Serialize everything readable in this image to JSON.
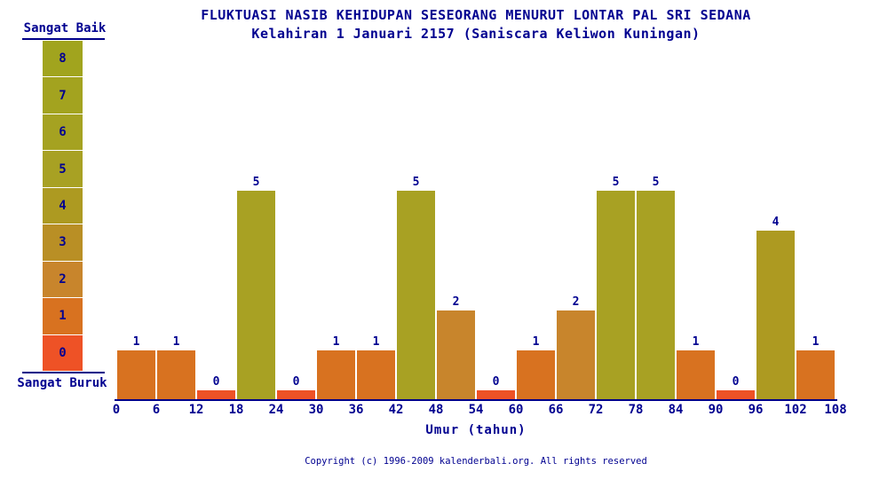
{
  "page": {
    "copyright": "Copyright (c) 1996-2009 kalenderbali.org. All rights reserved"
  },
  "chart_data": {
    "type": "bar",
    "title": "FLUKTUASI NASIB KEHIDUPAN SESEORANG MENURUT LONTAR PAL SRI SEDANA",
    "subtitle": "Kelahiran 1 Januari 2157 (Saniscara Keliwon Kuningan)",
    "xlabel": "Umur (tahun)",
    "ylabel": "",
    "grid": false,
    "legend_position": "left",
    "xlim": [
      0,
      108
    ],
    "ylim": [
      0,
      8
    ],
    "x_ticks": [
      0,
      6,
      12,
      18,
      24,
      30,
      36,
      42,
      48,
      54,
      60,
      66,
      72,
      78,
      84,
      90,
      96,
      102,
      108
    ],
    "categories": [
      "0-6",
      "6-12",
      "12-18",
      "18-24",
      "24-30",
      "30-36",
      "36-42",
      "42-48",
      "48-54",
      "54-60",
      "60-66",
      "66-72",
      "72-78",
      "78-84",
      "84-90",
      "90-96",
      "96-102",
      "102-108"
    ],
    "values": [
      1,
      1,
      0,
      5,
      0,
      1,
      1,
      5,
      2,
      0,
      1,
      2,
      5,
      5,
      1,
      0,
      4,
      1
    ],
    "legend": {
      "top_label": "Sangat Baik",
      "bottom_label": "Sangat Buruk",
      "levels": [
        8,
        7,
        6,
        5,
        4,
        3,
        2,
        1,
        0
      ],
      "colors": [
        "#a1a41e",
        "#a3a31f",
        "#a5a221",
        "#a8a123",
        "#ad9a21",
        "#b98f25",
        "#c8852c",
        "#d87220",
        "#ee5226"
      ]
    },
    "colors": {
      "text_navy": "#000090",
      "line_navy": "#000088",
      "background": "#ffffff"
    }
  }
}
